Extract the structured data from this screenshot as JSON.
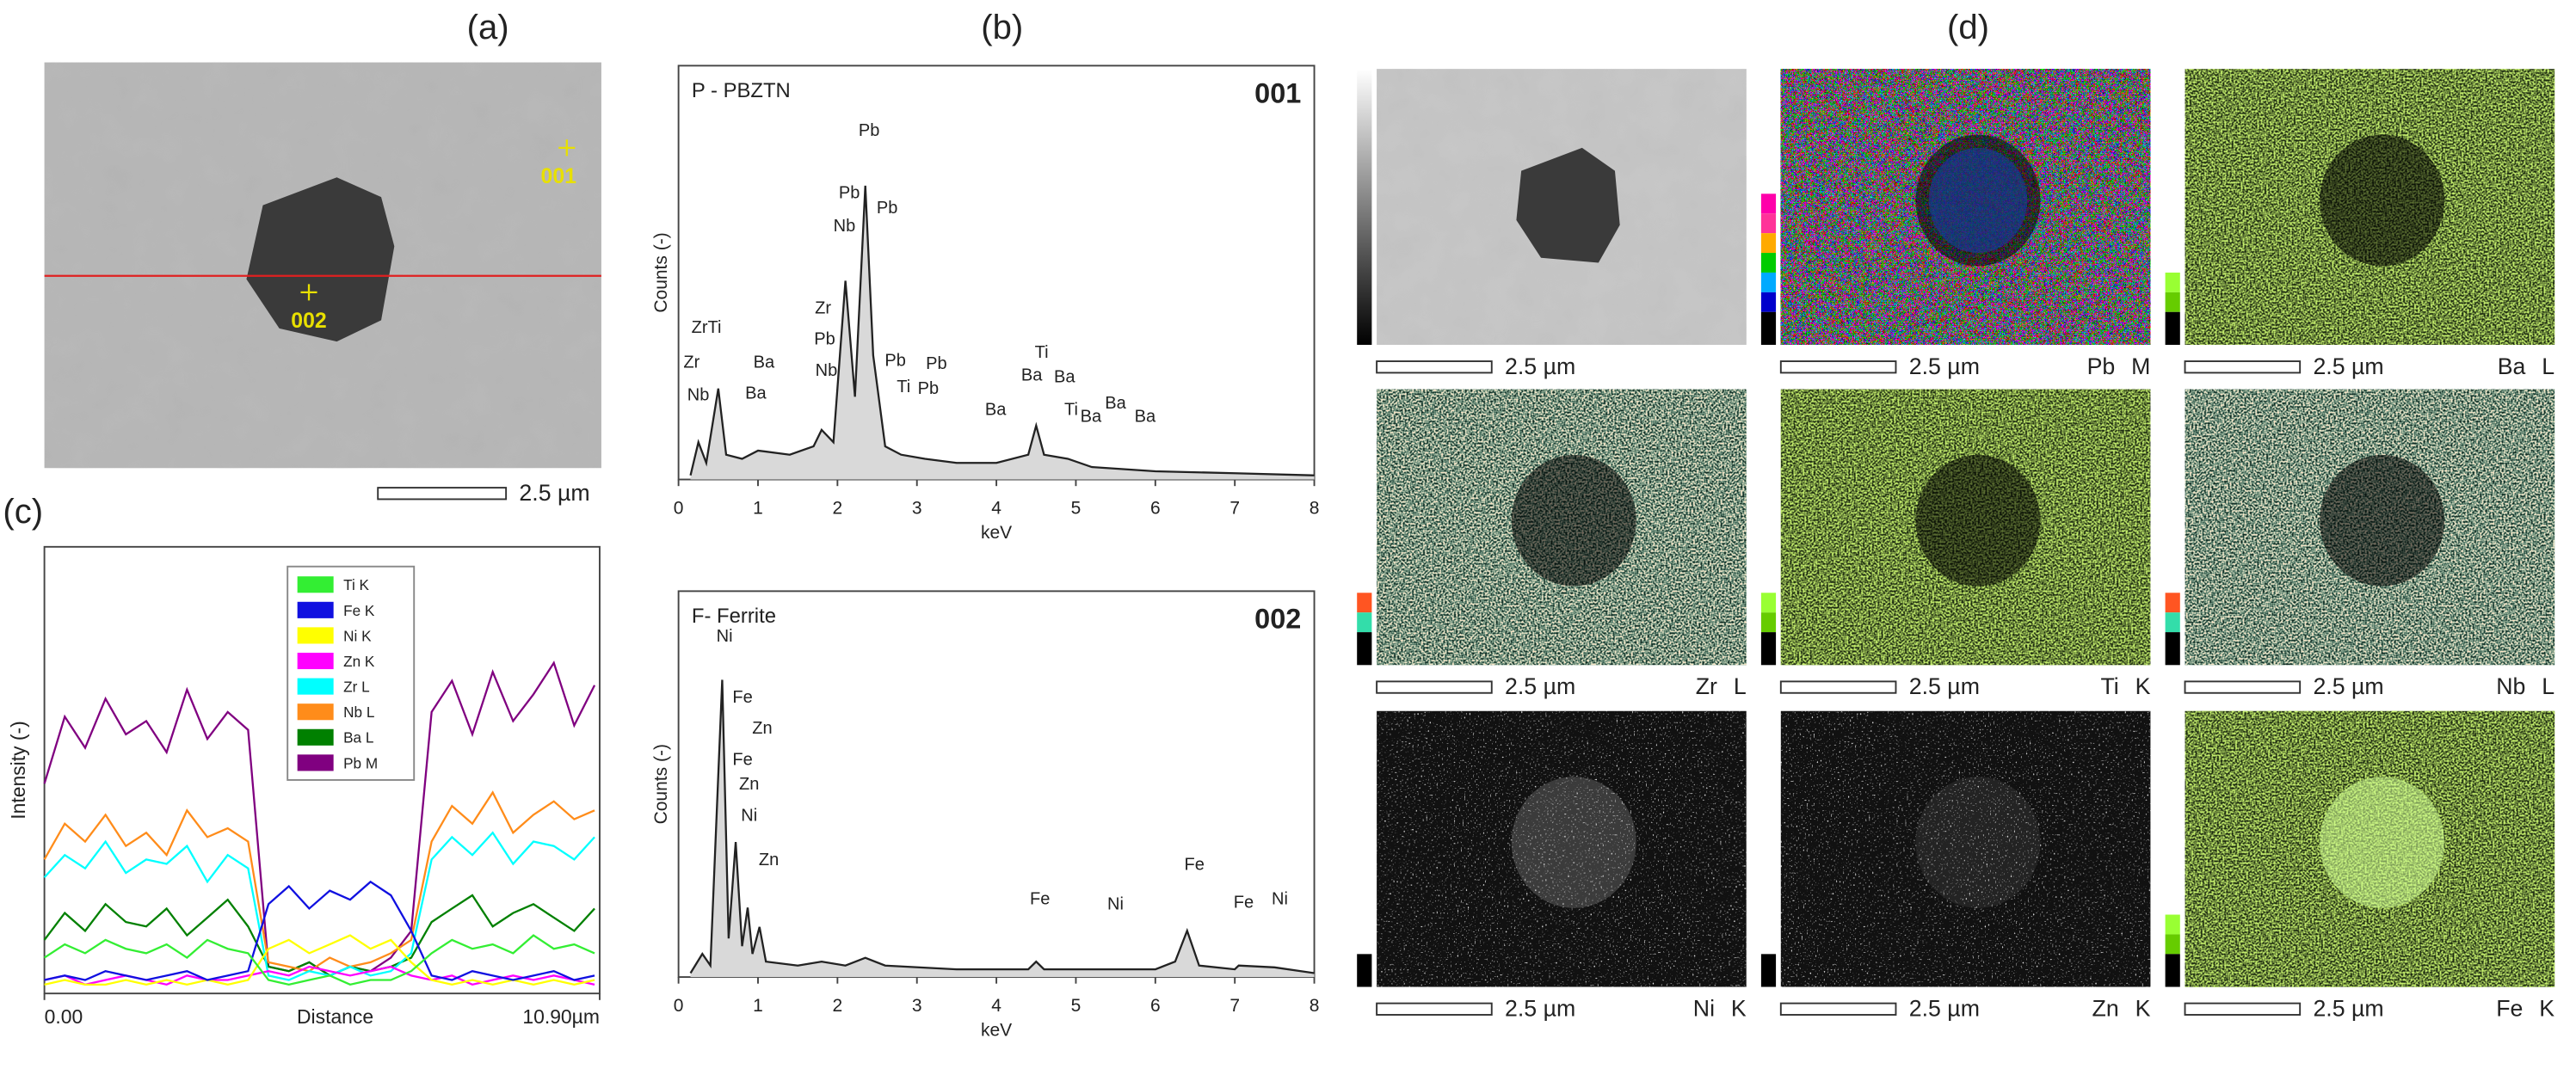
{
  "labels": {
    "a": "(a)",
    "b": "(b)",
    "c": "(c)",
    "d": "(d)"
  },
  "sem_image": {
    "points": [
      "001",
      "002"
    ],
    "scale": "2.5 µm"
  },
  "maps": [
    {
      "scale": "2.5 µm"
    },
    {
      "scale": "2.5 µm",
      "element": "Pb M"
    },
    {
      "scale": "2.5 µm",
      "element": "Ba L"
    },
    {
      "scale": "2.5 µm",
      "element": "Zr L"
    },
    {
      "scale": "2.5 µm",
      "element": "Ti K"
    },
    {
      "scale": "2.5 µm",
      "element": "Nb L"
    },
    {
      "scale": "2.5 µm",
      "element": "Ni K"
    },
    {
      "scale": "2.5 µm",
      "element": "Zn K"
    },
    {
      "scale": "2.5 µm",
      "element": "Fe K"
    }
  ],
  "chart_data": [
    {
      "type": "line",
      "title": "P - PBZTN",
      "subtitle": "001",
      "xlabel": "keV",
      "ylabel": "Counts (-)",
      "x": [
        0.15,
        0.25,
        0.35,
        0.5,
        0.6,
        0.8,
        1.0,
        1.4,
        1.7,
        1.8,
        1.95,
        2.1,
        2.22,
        2.35,
        2.45,
        2.6,
        2.8,
        3.1,
        3.5,
        4.0,
        4.4,
        4.5,
        4.6,
        4.9,
        5.2,
        6.0,
        7.0,
        8.0
      ],
      "values": [
        1,
        9,
        4,
        22,
        6,
        5,
        7,
        6,
        8,
        12,
        9,
        48,
        20,
        71,
        30,
        8,
        6,
        5,
        4,
        4,
        6,
        13,
        6,
        5,
        3,
        2,
        1.5,
        1
      ],
      "color": "#222222",
      "xlim": [
        0,
        8
      ],
      "ylim": [
        0,
        100
      ],
      "xticks": [
        0,
        1,
        2,
        3,
        4,
        5,
        6,
        7,
        8
      ],
      "peak_labels": [
        "Pb",
        "Pb",
        "Nb",
        "Pb",
        "Zr",
        "Pb",
        "Nb",
        "ZrTi",
        "Zr",
        "Nb",
        "Ba",
        "Ba",
        "Pb",
        "Ti",
        "Pb",
        "Pb",
        "Ba",
        "Ti",
        "Ba",
        "Ba",
        "Ti",
        "Ba",
        "Ba",
        "Ba"
      ]
    },
    {
      "type": "line",
      "title": "F- Ferrite",
      "subtitle": "002",
      "xlabel": "keV",
      "ylabel": "Counts (-)",
      "x": [
        0.15,
        0.3,
        0.4,
        0.55,
        0.63,
        0.72,
        0.8,
        0.87,
        0.93,
        1.02,
        1.1,
        1.5,
        1.8,
        2.1,
        2.35,
        2.6,
        3.5,
        4.4,
        4.5,
        4.6,
        6.0,
        6.25,
        6.4,
        6.55,
        7.0,
        7.05,
        7.5,
        8.0
      ],
      "values": [
        1,
        6,
        3,
        77,
        10,
        35,
        8,
        18,
        6,
        13,
        4,
        3,
        4,
        3,
        5,
        3,
        2,
        2,
        4,
        2,
        2,
        4,
        12,
        3,
        2,
        3,
        2.5,
        1
      ],
      "color": "#222222",
      "xlim": [
        0,
        8
      ],
      "ylim": [
        0,
        100
      ],
      "xticks": [
        0,
        1,
        2,
        3,
        4,
        5,
        6,
        7,
        8
      ],
      "peak_labels": [
        "Ni",
        "Fe",
        "Zn",
        "Fe",
        "Zn",
        "Ni",
        "Zn",
        "Fe",
        "Ni",
        "Fe",
        "Fe",
        "Ni"
      ]
    },
    {
      "type": "line",
      "xlabel": "Distance",
      "ylabel": "Intensity (-)",
      "x": [
        0,
        0.4,
        0.8,
        1.2,
        1.6,
        2.0,
        2.4,
        2.8,
        3.2,
        3.6,
        4.0,
        4.4,
        4.8,
        5.2,
        5.6,
        6.0,
        6.4,
        6.8,
        7.2,
        7.6,
        8.0,
        8.4,
        8.8,
        9.2,
        9.6,
        10.0,
        10.4,
        10.8
      ],
      "xlim": [
        0,
        10.9
      ],
      "ylim": [
        0,
        100
      ],
      "xticks": [
        {
          "value": 0,
          "label": "0.00"
        },
        {
          "value": 10.9,
          "label": "10.90µm"
        }
      ],
      "legend": "upper center",
      "series": [
        {
          "name": "Ti K",
          "color": "#33ee33",
          "values": [
            8,
            11,
            9,
            12,
            10,
            9,
            11,
            8,
            12,
            10,
            9,
            3,
            2,
            3,
            4,
            2,
            3,
            3,
            5,
            9,
            12,
            10,
            11,
            9,
            13,
            10,
            11,
            9
          ]
        },
        {
          "name": "Fe K",
          "color": "#1010e0",
          "values": [
            3,
            4,
            3,
            5,
            4,
            3,
            4,
            5,
            3,
            4,
            5,
            20,
            24,
            19,
            23,
            21,
            25,
            22,
            14,
            4,
            3,
            5,
            4,
            3,
            4,
            5,
            3,
            4
          ]
        },
        {
          "name": "Ni K",
          "color": "#ffff00",
          "values": [
            2,
            3,
            2,
            2,
            3,
            2,
            3,
            2,
            3,
            2,
            3,
            10,
            12,
            9,
            11,
            13,
            10,
            12,
            7,
            3,
            2,
            3,
            2,
            3,
            2,
            3,
            2,
            3
          ]
        },
        {
          "name": "Zn K",
          "color": "#ff00ff",
          "values": [
            3,
            4,
            2,
            3,
            4,
            3,
            2,
            4,
            3,
            3,
            4,
            5,
            4,
            6,
            5,
            4,
            5,
            6,
            4,
            3,
            4,
            2,
            3,
            4,
            3,
            4,
            3,
            2
          ]
        },
        {
          "name": "Zr L",
          "color": "#00ffff",
          "values": [
            26,
            31,
            28,
            34,
            27,
            30,
            29,
            33,
            25,
            31,
            28,
            4,
            3,
            5,
            4,
            6,
            4,
            5,
            9,
            30,
            35,
            31,
            36,
            29,
            34,
            33,
            30,
            35
          ]
        },
        {
          "name": "Nb L",
          "color": "#ff8c1a",
          "values": [
            30,
            38,
            34,
            40,
            33,
            36,
            31,
            41,
            35,
            37,
            34,
            7,
            6,
            5,
            8,
            6,
            7,
            9,
            12,
            34,
            42,
            38,
            45,
            36,
            40,
            43,
            39,
            41
          ]
        },
        {
          "name": "Ba L",
          "color": "#008000",
          "values": [
            12,
            18,
            14,
            20,
            16,
            15,
            19,
            13,
            17,
            21,
            15,
            6,
            5,
            7,
            4,
            6,
            5,
            6,
            8,
            16,
            19,
            22,
            15,
            18,
            20,
            17,
            14,
            19
          ]
        },
        {
          "name": "Pb M",
          "color": "#800080",
          "values": [
            47,
            62,
            55,
            66,
            58,
            61,
            54,
            68,
            57,
            63,
            59,
            6,
            5,
            7,
            4,
            6,
            5,
            8,
            14,
            63,
            70,
            58,
            72,
            61,
            67,
            74,
            60,
            69
          ]
        }
      ]
    }
  ]
}
